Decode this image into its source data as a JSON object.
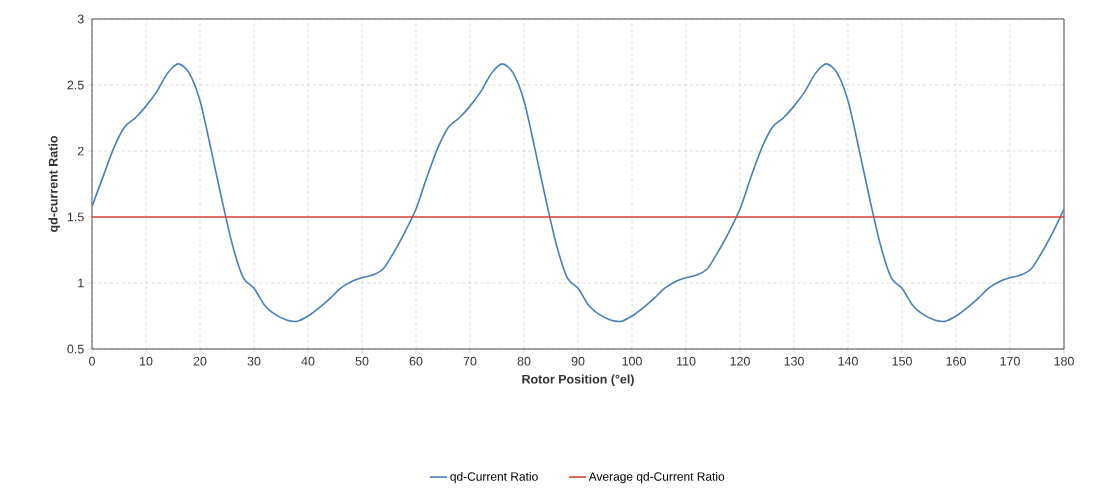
{
  "chart_data": {
    "type": "line",
    "xlabel": "Rotor Position (°el)",
    "ylabel": "qd-current Ratio",
    "xlim": [
      0,
      180
    ],
    "xticks": [
      0,
      10,
      20,
      30,
      40,
      50,
      60,
      70,
      80,
      90,
      100,
      110,
      120,
      130,
      140,
      150,
      160,
      170,
      180
    ],
    "ylim": [
      0.5,
      3
    ],
    "yticks": [
      0.5,
      1,
      1.5,
      2,
      2.5,
      3
    ],
    "grid": true,
    "legend": "bottom",
    "marker": "none",
    "line_style": "solid",
    "series": [
      {
        "name": "qd-Current Ratio",
        "color": "#4a7ebb",
        "x": [
          0,
          2,
          4,
          6,
          8,
          10,
          12,
          14,
          16,
          18,
          20,
          22,
          24,
          26,
          28,
          30,
          32,
          34,
          36,
          38,
          40,
          42,
          44,
          46,
          48,
          50,
          52,
          54,
          56,
          58,
          60,
          62,
          64,
          66,
          68,
          70,
          72,
          74,
          76,
          78,
          80,
          82,
          84,
          86,
          88,
          90,
          92,
          94,
          96,
          98,
          100,
          102,
          104,
          106,
          108,
          110,
          112,
          114,
          116,
          118,
          120,
          122,
          124,
          126,
          128,
          130,
          132,
          134,
          136,
          138,
          140,
          142,
          144,
          146,
          148,
          150,
          152,
          154,
          156,
          158,
          160,
          162,
          164,
          166,
          168,
          170,
          172,
          174,
          176,
          178,
          180
        ],
        "values": [
          1.58,
          1.8,
          2.02,
          2.18,
          2.25,
          2.34,
          2.45,
          2.59,
          2.66,
          2.59,
          2.38,
          2.02,
          1.64,
          1.29,
          1.04,
          0.96,
          0.83,
          0.76,
          0.72,
          0.71,
          0.75,
          0.81,
          0.88,
          0.96,
          1.01,
          1.04,
          1.06,
          1.11,
          1.24,
          1.39,
          1.56,
          1.8,
          2.02,
          2.18,
          2.25,
          2.34,
          2.45,
          2.59,
          2.66,
          2.59,
          2.38,
          2.02,
          1.64,
          1.29,
          1.04,
          0.96,
          0.83,
          0.76,
          0.72,
          0.71,
          0.75,
          0.81,
          0.88,
          0.96,
          1.01,
          1.04,
          1.06,
          1.11,
          1.24,
          1.39,
          1.56,
          1.8,
          2.02,
          2.18,
          2.25,
          2.34,
          2.45,
          2.59,
          2.66,
          2.59,
          2.38,
          2.02,
          1.64,
          1.29,
          1.04,
          0.96,
          0.83,
          0.76,
          0.72,
          0.71,
          0.75,
          0.81,
          0.88,
          0.96,
          1.01,
          1.04,
          1.06,
          1.11,
          1.24,
          1.39,
          1.56
        ]
      },
      {
        "name": "Average qd-Current Ratio",
        "color": "#d9403b",
        "x": [
          0,
          180
        ],
        "values": [
          1.5,
          1.5
        ]
      }
    ]
  }
}
